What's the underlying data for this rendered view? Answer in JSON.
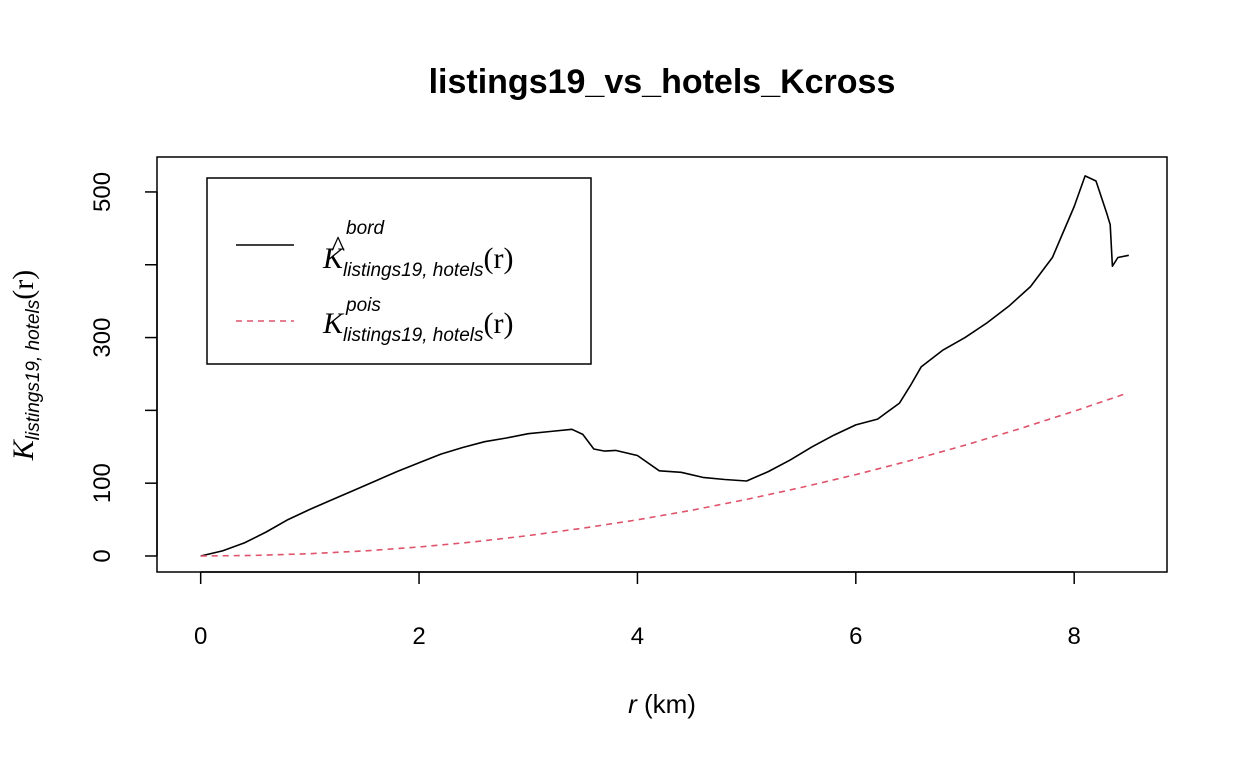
{
  "chart_data": {
    "type": "line",
    "title": "listings19_vs_hotels_Kcross",
    "xlabel": {
      "var": "r",
      "unit": " (km)"
    },
    "ylabel": {
      "main": "K",
      "sub": "listings19, hotels",
      "arg": "(r)"
    },
    "xlim": [
      -0.4,
      8.85
    ],
    "ylim": [
      -22,
      548
    ],
    "x_ticks": [
      0,
      2,
      4,
      6,
      8
    ],
    "y_ticks": [
      0,
      100,
      200,
      300,
      400,
      500
    ],
    "y_tick_labels": [
      "0",
      "100",
      "",
      "300",
      "",
      "500"
    ],
    "legend": {
      "placement": "top-left",
      "entries": [
        {
          "main": "K",
          "hat": "^",
          "sup": "bord",
          "sub": "listings19, hotels",
          "arg": "(r)"
        },
        {
          "main": "K",
          "hat": "",
          "sup": "pois",
          "sub": "listings19, hotels",
          "arg": "(r)"
        }
      ]
    },
    "series": [
      {
        "key": "bord",
        "color": "#000000",
        "dash": "",
        "x": [
          0,
          0.2,
          0.4,
          0.6,
          0.8,
          1.0,
          1.2,
          1.4,
          1.6,
          1.8,
          2.0,
          2.2,
          2.4,
          2.6,
          2.8,
          3.0,
          3.2,
          3.4,
          3.5,
          3.6,
          3.7,
          3.8,
          4.0,
          4.2,
          4.4,
          4.6,
          4.8,
          5.0,
          5.2,
          5.4,
          5.6,
          5.8,
          6.0,
          6.2,
          6.4,
          6.5,
          6.6,
          6.8,
          7.0,
          7.2,
          7.4,
          7.6,
          7.8,
          8.0,
          8.1,
          8.2,
          8.3,
          8.33,
          8.35,
          8.4,
          8.5
        ],
        "values": [
          0,
          7,
          18,
          33,
          50,
          64,
          77,
          90,
          103,
          116,
          128,
          140,
          149,
          157,
          162,
          168,
          171,
          174,
          167,
          147,
          144,
          145,
          138,
          117,
          115,
          108,
          105,
          103,
          116,
          132,
          150,
          166,
          180,
          188,
          210,
          234,
          260,
          283,
          300,
          320,
          343,
          370,
          410,
          480,
          522,
          515,
          470,
          455,
          398,
          410,
          413
        ]
      },
      {
        "key": "pois",
        "color": "#df536b",
        "dash": "6,5",
        "x": [
          0,
          0.5,
          1.0,
          1.5,
          2.0,
          2.5,
          3.0,
          3.5,
          4.0,
          4.5,
          5.0,
          5.5,
          6.0,
          6.5,
          7.0,
          7.5,
          8.0,
          8.45
        ],
        "values": [
          0,
          0.8,
          3.1,
          7.0,
          12.4,
          19.4,
          28.0,
          38.1,
          49.7,
          62.9,
          77.7,
          94.0,
          111.8,
          131.2,
          152.2,
          174.7,
          198.8,
          221.8
        ]
      }
    ]
  }
}
